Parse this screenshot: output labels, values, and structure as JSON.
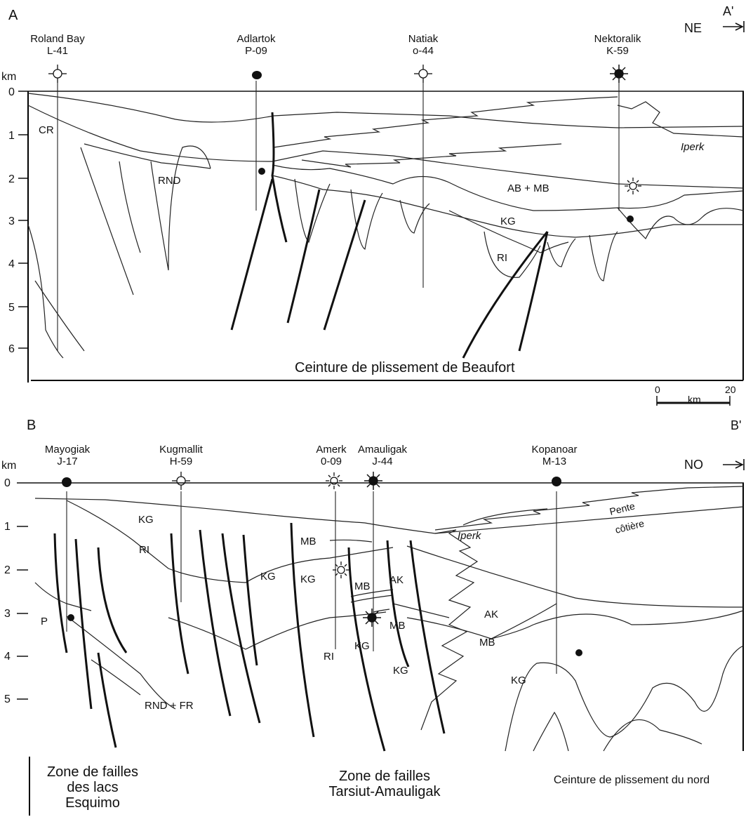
{
  "panel_a": {
    "letter": "A",
    "end_label": "A'",
    "direction": "NE",
    "axis_unit": "km",
    "depth_ticks": [
      "0",
      "1",
      "2",
      "3",
      "4",
      "5",
      "6"
    ],
    "wells": [
      {
        "name": "Roland Bay",
        "id": "L-41",
        "symbol": "dry-hole-icon"
      },
      {
        "name": "Adlartok",
        "id": "P-09",
        "symbol": "oil-well-icon"
      },
      {
        "name": "Natiak",
        "id": "o-44",
        "symbol": "dry-hole-icon"
      },
      {
        "name": "Nektoralik",
        "id": "K-59",
        "symbol": "gas-well-icon"
      }
    ],
    "units": {
      "cr": "CR",
      "rnd": "RND",
      "ab_mb": "AB + MB",
      "kg": "KG",
      "ri": "RI",
      "iperk": "Iperk"
    },
    "caption": "Ceinture de plissement de Beaufort"
  },
  "scale_bar": {
    "start": "0",
    "end": "20",
    "unit": "km"
  },
  "panel_b": {
    "letter": "B",
    "end_label": "B'",
    "direction": "NO",
    "axis_unit": "km",
    "depth_ticks": [
      "0",
      "1",
      "2",
      "3",
      "4",
      "5"
    ],
    "wells": [
      {
        "name": "Mayogiak",
        "id": "J-17",
        "symbol": "oil-well-icon"
      },
      {
        "name": "Kugmallit",
        "id": "H-59",
        "symbol": "dry-hole-icon"
      },
      {
        "name": "Amerk",
        "id": "0-09",
        "symbol": "gas-show-icon"
      },
      {
        "name": "Amauligak",
        "id": "J-44",
        "symbol": "gas-well-icon"
      },
      {
        "name": "Kopanoar",
        "id": "M-13",
        "symbol": "oil-well-icon"
      }
    ],
    "units": {
      "kg": "KG",
      "ri": "RI",
      "p": "P",
      "rnd_fr": "RND + FR",
      "mb": "MB",
      "ak": "AK",
      "iperk": "Iperk",
      "pente": "Pente",
      "cotiere": "côtière"
    },
    "captions": {
      "esquimo": [
        "Zone de failles",
        "des lacs",
        "Esquimo"
      ],
      "tarsiut": [
        "Zone de failles",
        "Tarsiut-Amauligak"
      ],
      "nord": "Ceinture de plissement du nord"
    }
  }
}
